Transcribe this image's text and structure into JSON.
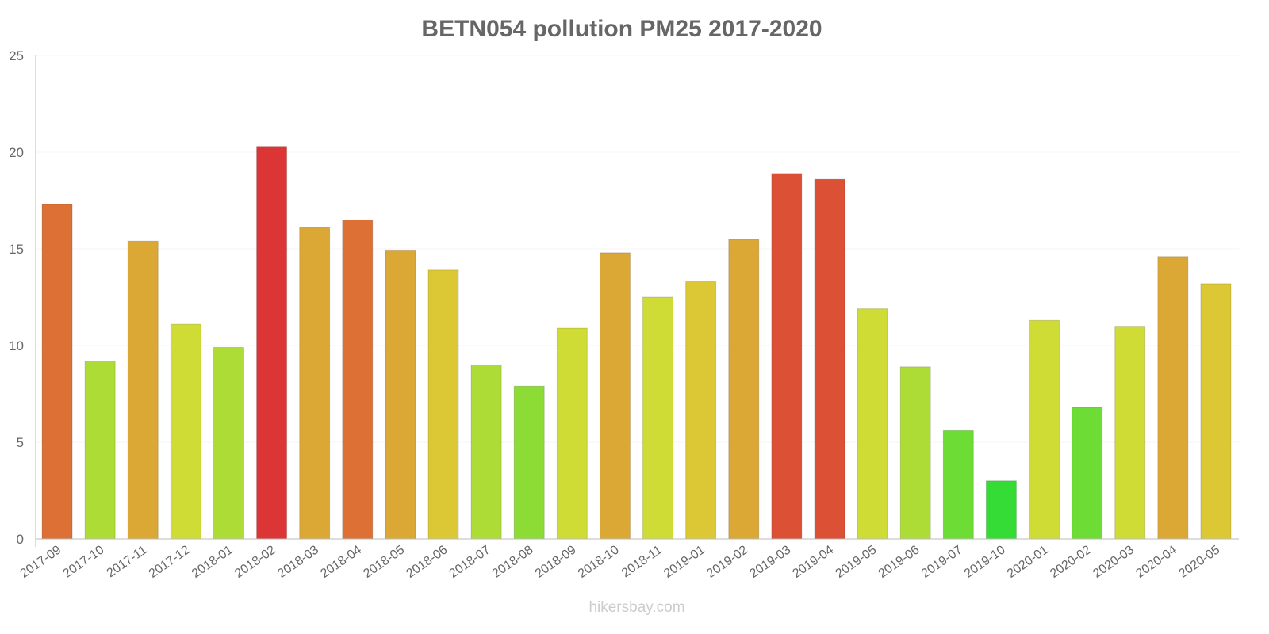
{
  "chart_data": {
    "type": "bar",
    "title": "BETN054 pollution PM25 2017-2020",
    "xlabel": "",
    "ylabel": "",
    "ylim": [
      0,
      25
    ],
    "yticks": [
      "0",
      "5",
      "10",
      "15",
      "20",
      "25"
    ],
    "grid": true,
    "categories": [
      "2017-09",
      "2017-10",
      "2017-11",
      "2017-12",
      "2018-01",
      "2018-02",
      "2018-03",
      "2018-04",
      "2018-05",
      "2018-06",
      "2018-07",
      "2018-08",
      "2018-09",
      "2018-10",
      "2018-11",
      "2019-01",
      "2019-02",
      "2019-03",
      "2019-04",
      "2019-05",
      "2019-06",
      "2019-07",
      "2019-10",
      "2020-01",
      "2020-02",
      "2020-03",
      "2020-04",
      "2020-05"
    ],
    "values": [
      17.3,
      9.2,
      15.4,
      11.1,
      9.9,
      20.3,
      16.1,
      16.5,
      14.9,
      13.9,
      9.0,
      7.9,
      10.9,
      14.8,
      12.5,
      13.3,
      15.5,
      18.9,
      18.6,
      11.9,
      8.9,
      5.6,
      3.0,
      11.3,
      6.8,
      11.0,
      14.6,
      13.2
    ],
    "colors": [
      "#dd7035",
      "#acdc35",
      "#dca835",
      "#cfdc35",
      "#acdc35",
      "#dc3535",
      "#dca835",
      "#dd7035",
      "#dca835",
      "#dcc835",
      "#acdc35",
      "#8ddc35",
      "#cfdc35",
      "#dca835",
      "#cfdc35",
      "#dcc835",
      "#dca835",
      "#dc5035",
      "#dc5035",
      "#cfdc35",
      "#acdc35",
      "#6ddc35",
      "#35dc35",
      "#cfdc35",
      "#6ddc35",
      "#cfdc35",
      "#dca835",
      "#dcc835"
    ]
  },
  "watermark": "hikersbay.com"
}
